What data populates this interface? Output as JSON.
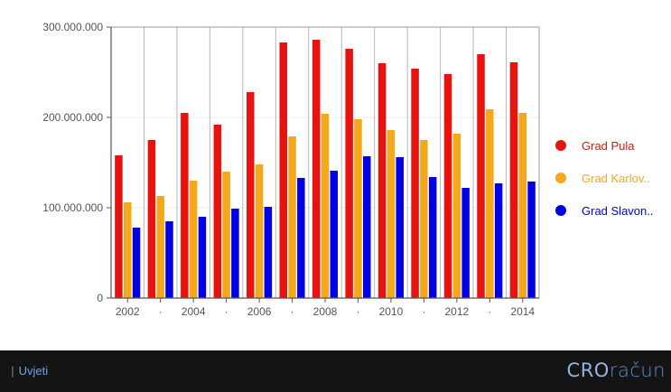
{
  "chart_data": {
    "type": "bar",
    "x_ticks": [
      "2002",
      "·",
      "2004",
      "·",
      "2006",
      "·",
      "2008",
      "·",
      "2010",
      "·",
      "2012",
      "·",
      "2014"
    ],
    "y_ticks": [
      "0",
      "100.000.000",
      "200.000.000",
      "300.000.000"
    ],
    "ylim": [
      0,
      300000000
    ],
    "grid": true,
    "legend_position": "right",
    "series": [
      {
        "name": "Grad Pula",
        "color": "#e8120e",
        "values": [
          158000000,
          175000000,
          205000000,
          192000000,
          228000000,
          283000000,
          286000000,
          276000000,
          260000000,
          254000000,
          248000000,
          270000000,
          261000000
        ]
      },
      {
        "name": "Grad Karlov..",
        "color": "#f5a81c",
        "values": [
          106000000,
          113000000,
          130000000,
          140000000,
          148000000,
          179000000,
          204000000,
          198000000,
          186000000,
          175000000,
          182000000,
          209000000,
          205000000
        ]
      },
      {
        "name": "Grad Slavon..",
        "color": "#0000e6",
        "values": [
          78000000,
          85000000,
          90000000,
          99000000,
          101000000,
          133000000,
          141000000,
          157000000,
          156000000,
          134000000,
          122000000,
          127000000,
          129000000
        ]
      }
    ]
  },
  "footer": {
    "link_cut": "a",
    "separator": "|",
    "link_terms": "Uvjeti",
    "brand_a": "CRO",
    "brand_b": "račun"
  }
}
